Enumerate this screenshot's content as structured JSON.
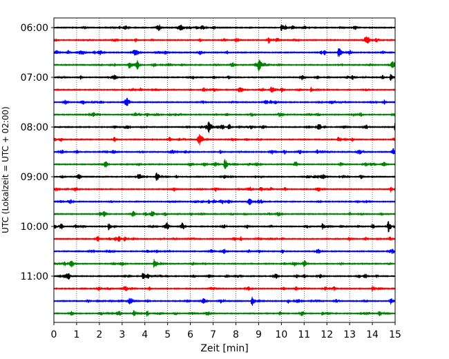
{
  "chart_data": {
    "type": "line",
    "subtype": "helicorder",
    "xlabel": "Zeit  [min]",
    "ylabel": "UTC (Lokalzeit = UTC + 02:00)",
    "xlim": [
      0,
      15
    ],
    "x_ticks": [
      "0",
      "1",
      "2",
      "3",
      "4",
      "5",
      "6",
      "7",
      "8",
      "9",
      "10",
      "11",
      "12",
      "13",
      "14",
      "15"
    ],
    "vertical_grid": "dotted",
    "y_tick_labels": [
      "06:00",
      "07:00",
      "08:00",
      "09:00",
      "10:00",
      "11:00"
    ],
    "trace_minutes": 15,
    "trace_start_times": [
      "06:00",
      "06:15",
      "06:30",
      "06:45",
      "07:00",
      "07:15",
      "07:30",
      "07:45",
      "08:00",
      "08:15",
      "08:30",
      "08:45",
      "09:00",
      "09:15",
      "09:30",
      "09:45",
      "10:00",
      "10:15",
      "10:30",
      "10:45",
      "11:00",
      "11:15",
      "11:30",
      "11:45"
    ],
    "color_cycle": [
      "#000000",
      "#ff0000",
      "#0000ff",
      "#008000"
    ],
    "events": [
      {
        "trace": 0,
        "minute": 10.0,
        "amplitude": 6
      },
      {
        "trace": 2,
        "minute": 12.5,
        "amplitude": 9
      },
      {
        "trace": 3,
        "minute": 9.0,
        "amplitude": 10
      },
      {
        "trace": 3,
        "minute": 3.3,
        "amplitude": 5
      },
      {
        "trace": 4,
        "minute": 14.8,
        "amplitude": 5
      },
      {
        "trace": 5,
        "minute": 11.3,
        "amplitude": 4
      },
      {
        "trace": 8,
        "minute": 6.8,
        "amplitude": 10
      },
      {
        "trace": 8,
        "minute": 15.0,
        "amplitude": 9
      },
      {
        "trace": 9,
        "minute": 6.4,
        "amplitude": 5
      },
      {
        "trace": 9,
        "minute": 12.5,
        "amplitude": 5
      },
      {
        "trace": 11,
        "minute": 7.5,
        "amplitude": 9
      },
      {
        "trace": 12,
        "minute": 4.5,
        "amplitude": 5
      },
      {
        "trace": 16,
        "minute": 2.4,
        "amplitude": 5
      },
      {
        "trace": 16,
        "minute": 11.8,
        "amplitude": 5
      },
      {
        "trace": 16,
        "minute": 14.7,
        "amplitude": 5
      },
      {
        "trace": 19,
        "minute": 4.4,
        "amplitude": 8
      },
      {
        "trace": 20,
        "minute": 3.9,
        "amplitude": 5
      },
      {
        "trace": 21,
        "minute": 14.0,
        "amplitude": 5
      },
      {
        "trace": 22,
        "minute": 8.7,
        "amplitude": 8
      },
      {
        "trace": 23,
        "minute": 3.5,
        "amplitude": 5
      },
      {
        "trace": 23,
        "minute": 11.8,
        "amplitude": 4
      },
      {
        "trace": 23,
        "minute": 14.3,
        "amplitude": 5
      }
    ]
  }
}
